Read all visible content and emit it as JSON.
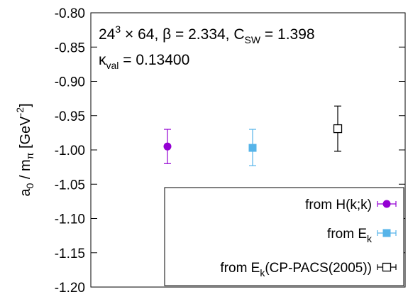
{
  "chart_data": {
    "type": "scatter",
    "ylabel": "a0 / mπ [GeV-2]",
    "ylim": [
      -1.2,
      -0.8
    ],
    "y_ticks": [
      "-0.80",
      "-0.85",
      "-0.90",
      "-0.95",
      "-1.00",
      "-1.05",
      "-1.10",
      "-1.15",
      "-1.20"
    ],
    "annotation_line1": "24^3 × 64, β = 2.334, C_SW = 1.398",
    "annotation_line2": "κ_val = 0.13400",
    "legend_position": "bottom-right",
    "grid": false,
    "series": [
      {
        "name": "from H(k;k)",
        "x": 1,
        "y": -0.995,
        "err_minus": 0.025,
        "err_plus": 0.025,
        "color": "#9400d3",
        "marker": "filled-circle"
      },
      {
        "name": "from E_k",
        "x": 2,
        "y": -0.997,
        "err_minus": 0.026,
        "err_plus": 0.027,
        "color": "#56b4e9",
        "marker": "filled-square"
      },
      {
        "name": "from E_k(CP-PACS(2005))",
        "x": 3,
        "y": -0.969,
        "err_minus": 0.033,
        "err_plus": 0.033,
        "color": "#000000",
        "marker": "open-square"
      }
    ]
  }
}
